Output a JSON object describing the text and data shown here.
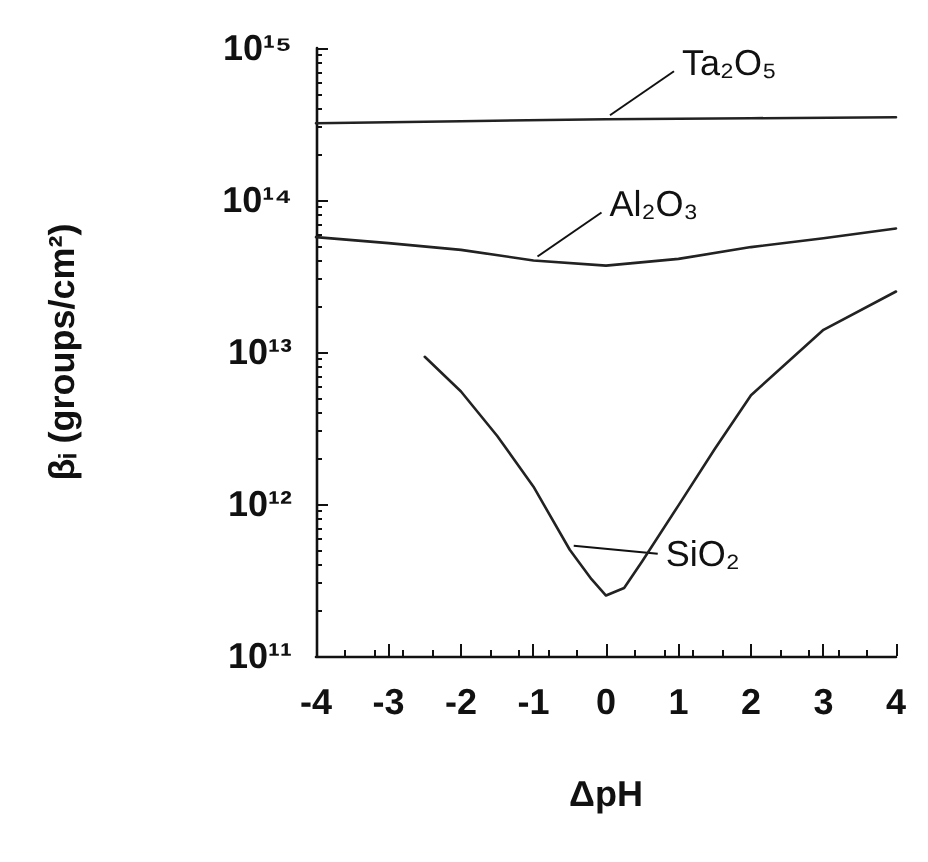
{
  "chart_data": {
    "type": "line",
    "xlabel": "ΔpH",
    "ylabel": "βᵢ (groups/cm²)",
    "log": "y",
    "grid": false,
    "legend": false,
    "marker": "none",
    "line_style": "solid",
    "xlim": [
      -4,
      4
    ],
    "xticks": [
      -4,
      -3,
      -2,
      -1,
      0,
      1,
      2,
      3,
      4
    ],
    "ylim": [
      100000000000.0,
      1000000000000000.0
    ],
    "yticks": [
      {
        "value": 100000000000.0,
        "label": "10¹¹"
      },
      {
        "value": 1000000000000.0,
        "label": "10¹²"
      },
      {
        "value": 10000000000000.0,
        "label": "10¹³"
      },
      {
        "value": 100000000000000.0,
        "label": "10¹⁴"
      },
      {
        "value": 1000000000000000.0,
        "label": "10¹⁵"
      }
    ],
    "series": [
      {
        "name": "Ta₂O₅",
        "color": "#222222",
        "x": [
          -4,
          -2,
          0,
          2,
          4
        ],
        "values": [
          320000000000000.0,
          330000000000000.0,
          340000000000000.0,
          345000000000000.0,
          350000000000000.0
        ]
      },
      {
        "name": "Al₂O₃",
        "color": "#222222",
        "x": [
          -4,
          -3,
          -2,
          -1,
          0,
          1,
          2,
          3,
          4
        ],
        "values": [
          57000000000000.0,
          52000000000000.0,
          47000000000000.0,
          40000000000000.0,
          37000000000000.0,
          41000000000000.0,
          49000000000000.0,
          56000000000000.0,
          65000000000000.0
        ]
      },
      {
        "name": "SiO₂",
        "color": "#222222",
        "x": [
          -2.5,
          -2,
          -1.5,
          -1,
          -0.5,
          -0.2,
          0,
          0.25,
          0.5,
          1,
          1.5,
          2,
          3,
          4
        ],
        "values": [
          9300000000000.0,
          5500000000000.0,
          2800000000000.0,
          1300000000000.0,
          500000000000.0,
          320000000000.0,
          250000000000.0,
          280000000000.0,
          420000000000.0,
          980000000000.0,
          2300000000000.0,
          5200000000000.0,
          14000000000000.0,
          25000000000000.0
        ]
      }
    ]
  }
}
